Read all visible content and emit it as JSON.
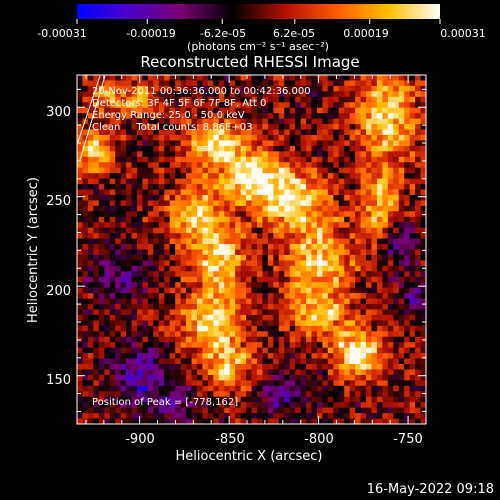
{
  "colorbar": {
    "tick_labels": [
      "-0.00031",
      "-0.00019",
      "-6.2e-05",
      "6.2e-05",
      "0.00019",
      "0.00031"
    ],
    "tick_values": [
      -0.00031,
      -0.00019,
      -6.2e-05,
      6.2e-05,
      0.00019,
      0.00031
    ],
    "unit_label": "(photons cm⁻² s⁻¹ asec⁻²)",
    "range": [
      -0.00031,
      0.00031
    ],
    "colors": [
      "#0000ff",
      "#4a00c8",
      "#7a0070",
      "#000000",
      "#b01000",
      "#ff5a00",
      "#ffc000",
      "#ffffff"
    ]
  },
  "chart_data": {
    "type": "heatmap",
    "title": "Reconstructed RHESSI Image",
    "xlabel": "Heliocentric X (arcsec)",
    "ylabel": "Heliocentric Y (arcsec)",
    "xlim": [
      -935,
      -740
    ],
    "ylim": [
      123,
      318
    ],
    "x_ticks": [
      -900,
      -850,
      -800,
      -750
    ],
    "y_ticks": [
      150,
      200,
      250,
      300
    ],
    "x_tick_labels": [
      "-900",
      "-850",
      "-800",
      "-750"
    ],
    "y_tick_labels": [
      "150",
      "200",
      "250",
      "300"
    ],
    "peak": [
      -778,
      162
    ],
    "value_range": [
      -0.00031,
      0.00031
    ],
    "grid": false,
    "sources": [
      {
        "x": -858,
        "y": 280,
        "sx": 12,
        "sy": 8,
        "amp": 0.9
      },
      {
        "x": -838,
        "y": 262,
        "sx": 14,
        "sy": 10,
        "amp": 0.85
      },
      {
        "x": -815,
        "y": 248,
        "sx": 16,
        "sy": 12,
        "amp": 0.8
      },
      {
        "x": -870,
        "y": 240,
        "sx": 10,
        "sy": 12,
        "amp": 0.75
      },
      {
        "x": -855,
        "y": 215,
        "sx": 10,
        "sy": 14,
        "amp": 0.8
      },
      {
        "x": -860,
        "y": 180,
        "sx": 12,
        "sy": 12,
        "amp": 0.8
      },
      {
        "x": -850,
        "y": 155,
        "sx": 10,
        "sy": 10,
        "amp": 0.7
      },
      {
        "x": -800,
        "y": 215,
        "sx": 14,
        "sy": 14,
        "amp": 0.75
      },
      {
        "x": -800,
        "y": 185,
        "sx": 12,
        "sy": 10,
        "amp": 0.7
      },
      {
        "x": -778,
        "y": 162,
        "sx": 10,
        "sy": 10,
        "amp": 1.0
      },
      {
        "x": -762,
        "y": 295,
        "sx": 12,
        "sy": 18,
        "amp": 0.85
      },
      {
        "x": -765,
        "y": 245,
        "sx": 8,
        "sy": 14,
        "amp": 0.7
      },
      {
        "x": -925,
        "y": 275,
        "sx": 8,
        "sy": 8,
        "amp": 0.8
      },
      {
        "x": -920,
        "y": 305,
        "sx": 8,
        "sy": 8,
        "amp": 0.5
      },
      {
        "x": -900,
        "y": 305,
        "sx": 8,
        "sy": 6,
        "amp": 0.6
      },
      {
        "x": -900,
        "y": 150,
        "sx": 10,
        "sy": 12,
        "amp": -0.6
      },
      {
        "x": -912,
        "y": 205,
        "sx": 10,
        "sy": 10,
        "amp": -0.5
      },
      {
        "x": -880,
        "y": 135,
        "sx": 10,
        "sy": 8,
        "amp": -0.4
      },
      {
        "x": -820,
        "y": 140,
        "sx": 10,
        "sy": 8,
        "amp": -0.45
      },
      {
        "x": -755,
        "y": 225,
        "sx": 6,
        "sy": 8,
        "amp": -0.6
      },
      {
        "x": -745,
        "y": 195,
        "sx": 6,
        "sy": 8,
        "amp": -0.5
      }
    ]
  },
  "annotations": {
    "time_range": "20-Nov-2011 00:36:36.000 to 00:42:36.000",
    "detectors": "Detectors: 3F 4F 5F 6F 7F 8F, Att 0",
    "energy_range": "Energy Range: 25.0 - 50.0 keV",
    "algorithm": "Clean     Total counts: 8.86E+03",
    "peak_position": "Position of Peak = [-778,162]"
  },
  "footer": {
    "timestamp": "16-May-2022 09:18"
  }
}
